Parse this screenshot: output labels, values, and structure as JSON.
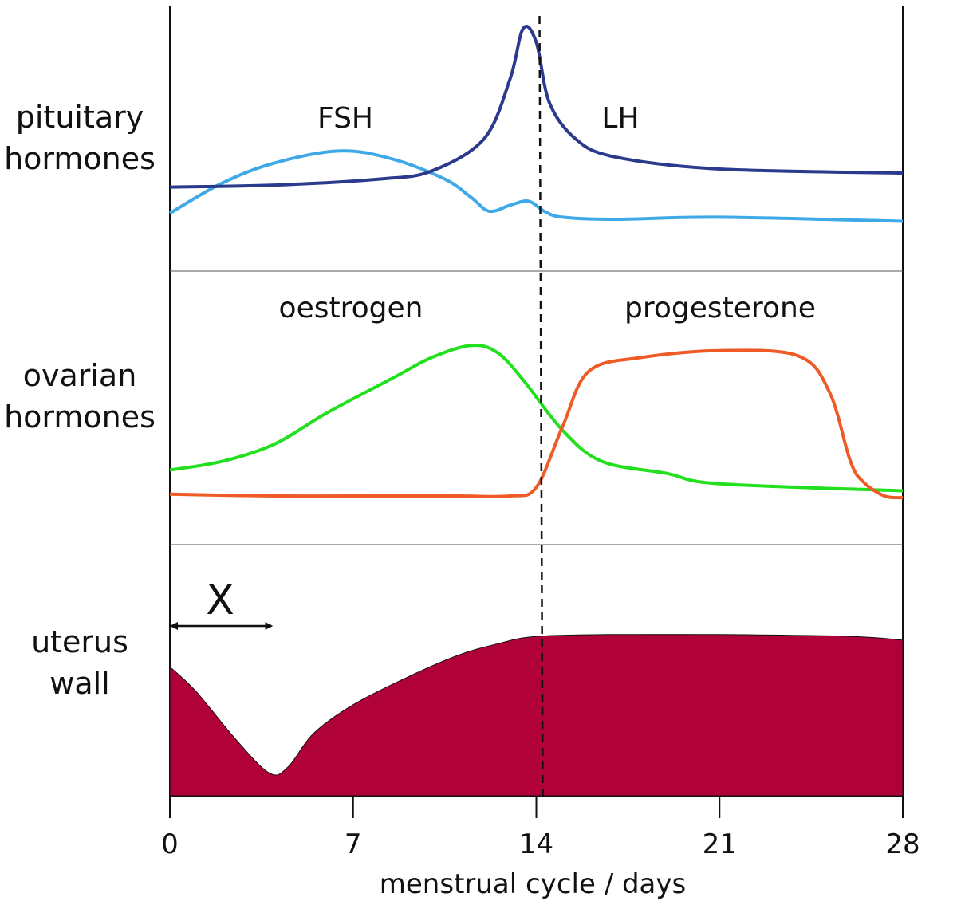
{
  "panels": [
    {
      "id": "pituitary",
      "label_line1": "pituitary",
      "label_line2": "hormones"
    },
    {
      "id": "ovarian",
      "label_line1": "ovarian",
      "label_line2": "hormones"
    },
    {
      "id": "uterus",
      "label_line1": "uterus",
      "label_line2": "wall"
    }
  ],
  "curve_labels": {
    "fsh": "FSH",
    "lh": "LH",
    "oestrogen": "oestrogen",
    "progesterone": "progesterone"
  },
  "annotation": {
    "arrow_label": "X",
    "arrow_from_day": 0,
    "arrow_to_day": 4
  },
  "ovulation_day": 14,
  "colors": {
    "lh": "#2b3a8c",
    "fsh": "#3fa9e8",
    "oestrogen": "#22e01e",
    "progesterone": "#ef5a27",
    "uterus_fill": "#b00238"
  },
  "chart_data": {
    "type": "line",
    "title": "",
    "xlabel": "menstrual cycle / days",
    "x_ticks": [
      "0",
      "7",
      "14",
      "21",
      "28"
    ],
    "xlim": [
      0,
      28
    ],
    "series": [
      {
        "name": "LH",
        "panel": "pituitary",
        "points": [
          [
            0,
            0.18
          ],
          [
            4,
            0.19
          ],
          [
            8,
            0.22
          ],
          [
            10,
            0.26
          ],
          [
            12,
            0.42
          ],
          [
            13,
            0.72
          ],
          [
            13.5,
            0.97
          ],
          [
            14,
            0.9
          ],
          [
            14.5,
            0.6
          ],
          [
            15.5,
            0.42
          ],
          [
            17,
            0.33
          ],
          [
            21,
            0.27
          ],
          [
            28,
            0.25
          ]
        ]
      },
      {
        "name": "FSH",
        "panel": "pituitary",
        "points": [
          [
            0,
            0.05
          ],
          [
            2,
            0.2
          ],
          [
            4,
            0.3
          ],
          [
            6.5,
            0.36
          ],
          [
            8.5,
            0.32
          ],
          [
            10.5,
            0.22
          ],
          [
            11.5,
            0.13
          ],
          [
            12.2,
            0.06
          ],
          [
            13,
            0.09
          ],
          [
            13.7,
            0.11
          ],
          [
            14.3,
            0.06
          ],
          [
            15,
            0.03
          ],
          [
            17,
            0.02
          ],
          [
            21,
            0.03
          ],
          [
            28,
            0.01
          ]
        ]
      },
      {
        "name": "oestrogen",
        "panel": "ovarian",
        "points": [
          [
            0,
            0.15
          ],
          [
            2,
            0.2
          ],
          [
            4,
            0.3
          ],
          [
            6,
            0.48
          ],
          [
            8.5,
            0.68
          ],
          [
            10,
            0.8
          ],
          [
            11.5,
            0.87
          ],
          [
            12.5,
            0.83
          ],
          [
            13.5,
            0.67
          ],
          [
            15,
            0.38
          ],
          [
            16.5,
            0.2
          ],
          [
            19,
            0.13
          ],
          [
            21,
            0.07
          ],
          [
            28,
            0.03
          ]
        ]
      },
      {
        "name": "progesterone",
        "panel": "ovarian",
        "points": [
          [
            0,
            0.01
          ],
          [
            4,
            0.0
          ],
          [
            8,
            0.0
          ],
          [
            11,
            0.0
          ],
          [
            13,
            0.0
          ],
          [
            14,
            0.05
          ],
          [
            15,
            0.4
          ],
          [
            16,
            0.72
          ],
          [
            18,
            0.8
          ],
          [
            21,
            0.84
          ],
          [
            24,
            0.81
          ],
          [
            25.2,
            0.6
          ],
          [
            26,
            0.2
          ],
          [
            26.5,
            0.08
          ],
          [
            27.3,
            0.0
          ],
          [
            28,
            -0.01
          ]
        ]
      },
      {
        "name": "uterus wall",
        "panel": "uterus",
        "points": [
          [
            0,
            0.68
          ],
          [
            1,
            0.55
          ],
          [
            2.5,
            0.3
          ],
          [
            3.8,
            0.12
          ],
          [
            4.5,
            0.15
          ],
          [
            5.5,
            0.33
          ],
          [
            7,
            0.48
          ],
          [
            9,
            0.62
          ],
          [
            11,
            0.74
          ],
          [
            12.5,
            0.8
          ],
          [
            14,
            0.84
          ],
          [
            17,
            0.85
          ],
          [
            21,
            0.85
          ],
          [
            26,
            0.84
          ],
          [
            28,
            0.82
          ]
        ]
      }
    ]
  }
}
